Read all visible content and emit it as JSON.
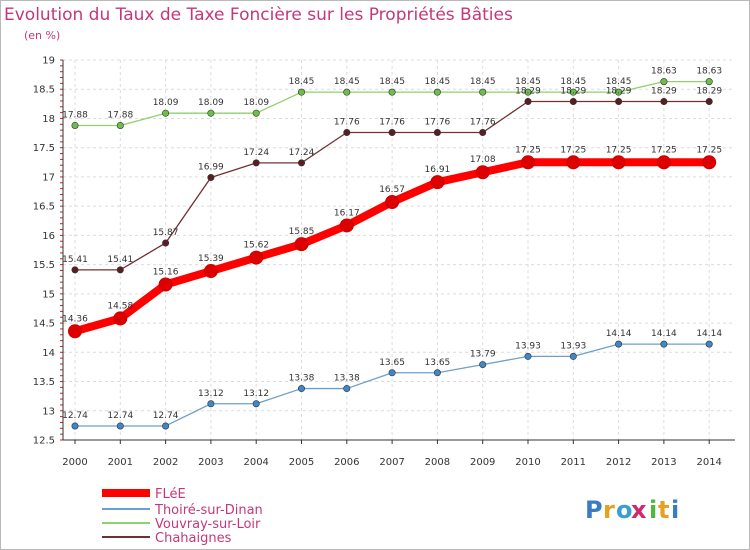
{
  "chart_data": {
    "type": "line",
    "title": "Evolution du Taux de Taxe Foncière sur les Propriétés Bâties",
    "subtitle": "(en %)",
    "categories": [
      "2000",
      "2001",
      "2002",
      "2003",
      "2004",
      "2005",
      "2006",
      "2007",
      "2008",
      "2009",
      "2010",
      "2011",
      "2012",
      "2013",
      "2014"
    ],
    "y_ticks": [
      "12.5",
      "13",
      "13.5",
      "14",
      "14.5",
      "15",
      "15.5",
      "16",
      "16.5",
      "17",
      "17.5",
      "18",
      "18.5",
      "19"
    ],
    "ylim": [
      12.5,
      19
    ],
    "series": [
      {
        "name": "FLéE",
        "color": "#ff0000",
        "point_color": "#dd0000",
        "values": [
          14.36,
          14.58,
          15.16,
          15.39,
          15.62,
          15.85,
          16.17,
          16.57,
          16.91,
          17.08,
          17.25,
          17.25,
          17.25,
          17.25,
          17.25
        ],
        "labels": [
          "14.36",
          "14.58",
          "15.16",
          "15.39",
          "15.62",
          "15.85",
          "16.17",
          "16.57",
          "16.91",
          "17.08",
          "17.25",
          "17.25",
          "17.25",
          "17.25",
          "17.25"
        ]
      },
      {
        "name": "Thoiré-sur-Dinan",
        "color": "#6ca0cc",
        "point_color": "#3f88c5",
        "values": [
          12.74,
          12.74,
          12.74,
          13.12,
          13.12,
          13.38,
          13.38,
          13.65,
          13.65,
          13.79,
          13.93,
          13.93,
          14.14,
          14.14,
          14.14
        ],
        "labels": [
          "12.74",
          "12.74",
          "12.74",
          "13.12",
          "13.12",
          "13.38",
          "13.38",
          "13.65",
          "13.65",
          "13.79",
          "13.93",
          "13.93",
          "14.14",
          "14.14",
          "14.14"
        ]
      },
      {
        "name": "Vouvray-sur-Loir",
        "color": "#8fd16a",
        "point_color": "#6cc04a",
        "values": [
          17.88,
          17.88,
          18.09,
          18.09,
          18.09,
          18.45,
          18.45,
          18.45,
          18.45,
          18.45,
          18.45,
          18.45,
          18.45,
          18.63,
          18.63
        ],
        "labels": [
          "17.88",
          "17.88",
          "18.09",
          "18.09",
          "18.09",
          "18.45",
          "18.45",
          "18.45",
          "18.45",
          "18.45",
          "18.45",
          "18.45",
          "18.45",
          "18.63",
          "18.63"
        ]
      },
      {
        "name": "Chahaignes",
        "color": "#703034",
        "point_color": "#5a1d22",
        "values": [
          15.41,
          15.41,
          15.87,
          16.99,
          17.24,
          17.24,
          17.76,
          17.76,
          17.76,
          17.76,
          18.29,
          18.29,
          18.29,
          18.29,
          18.29
        ],
        "labels": [
          "15.41",
          "15.41",
          "15.87",
          "16.99",
          "17.24",
          "17.24",
          "17.76",
          "17.76",
          "17.76",
          "17.76",
          "18.29",
          "18.29",
          "18.29",
          "18.29",
          "18.29"
        ]
      }
    ]
  },
  "legend": {
    "items": [
      "FLéE",
      "Thoiré-sur-Dinan",
      "Vouvray-sur-Loir",
      "Chahaignes"
    ]
  },
  "logo": {
    "text": "Proxiti",
    "letters": [
      "P",
      "r",
      "o",
      "x",
      "i",
      "t",
      "i"
    ],
    "colors": [
      "#3a7cc4",
      "#e8a020",
      "#3a9fd0",
      "#d02a6a",
      "#4fb840",
      "#e8a020",
      "#3a7cc4"
    ]
  }
}
